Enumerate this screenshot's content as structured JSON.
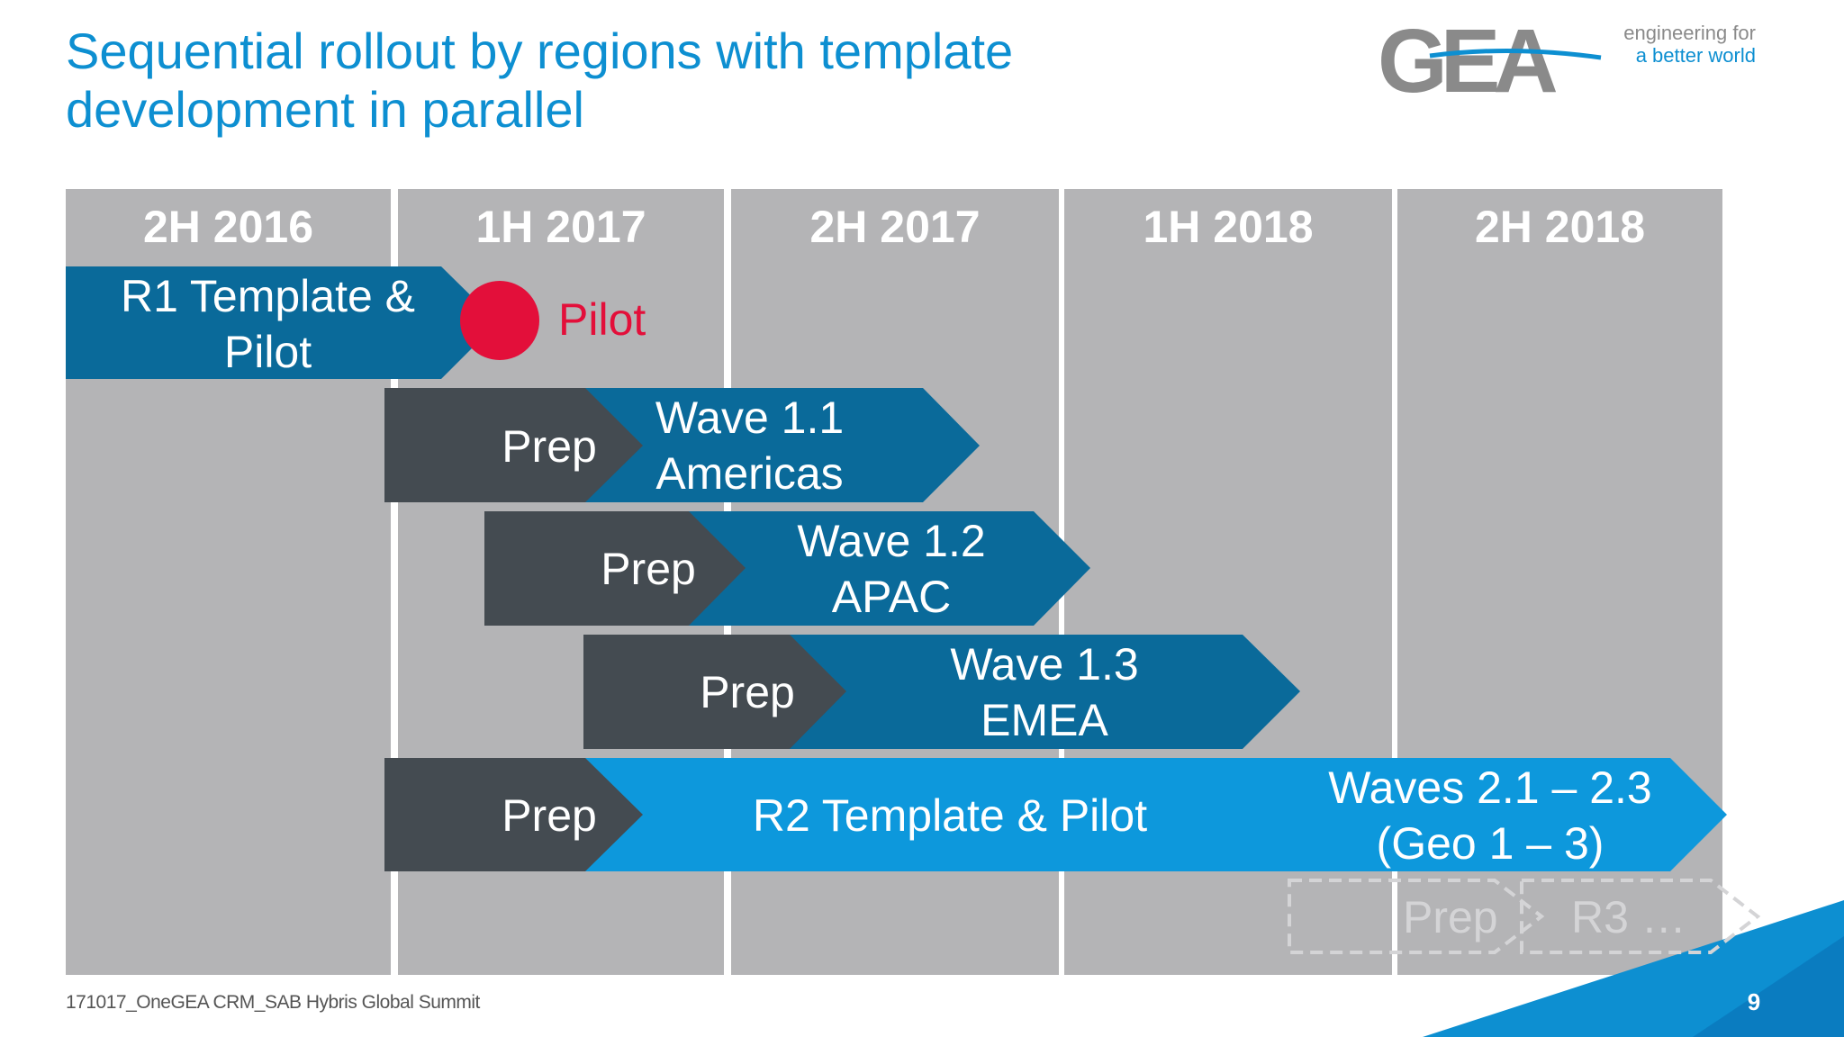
{
  "title": {
    "line1": "Sequential rollout by regions with template",
    "line2": "development in parallel"
  },
  "logo": {
    "wordmark": "GEA",
    "tagline_line1": "engineering for",
    "tagline_line2": "a better world"
  },
  "columns": [
    "2H 2016",
    "1H 2017",
    "2H 2017",
    "1H 2018",
    "2H 2018"
  ],
  "rows": {
    "r1": {
      "line1": "R1 Template &",
      "line2": "Pilot"
    },
    "pilot": "Pilot",
    "wave11": {
      "prep": "Prep",
      "line1": "Wave 1.1",
      "line2": "Americas"
    },
    "wave12": {
      "prep": "Prep",
      "line1": "Wave 1.2",
      "line2": "APAC"
    },
    "wave13": {
      "prep": "Prep",
      "line1": "Wave 1.3",
      "line2": "EMEA"
    },
    "r2": {
      "prep": "Prep",
      "label": "R2 Template & Pilot",
      "waves_line1": "Waves 2.1 – 2.3",
      "waves_line2": "(Geo 1 – 3)"
    },
    "r3": {
      "prep": "Prep",
      "label": "R3 …"
    }
  },
  "footer": "171017_OneGEA CRM_SAB Hybris Global Summit",
  "page_number": "9",
  "colors": {
    "title": "#0d8fd1",
    "column_bg": "#b4b4b6",
    "dark_blue": "#0a6a9a",
    "bright_blue": "#0d98dc",
    "prep_gray": "#444b51",
    "pilot_red": "#e30f3a"
  }
}
